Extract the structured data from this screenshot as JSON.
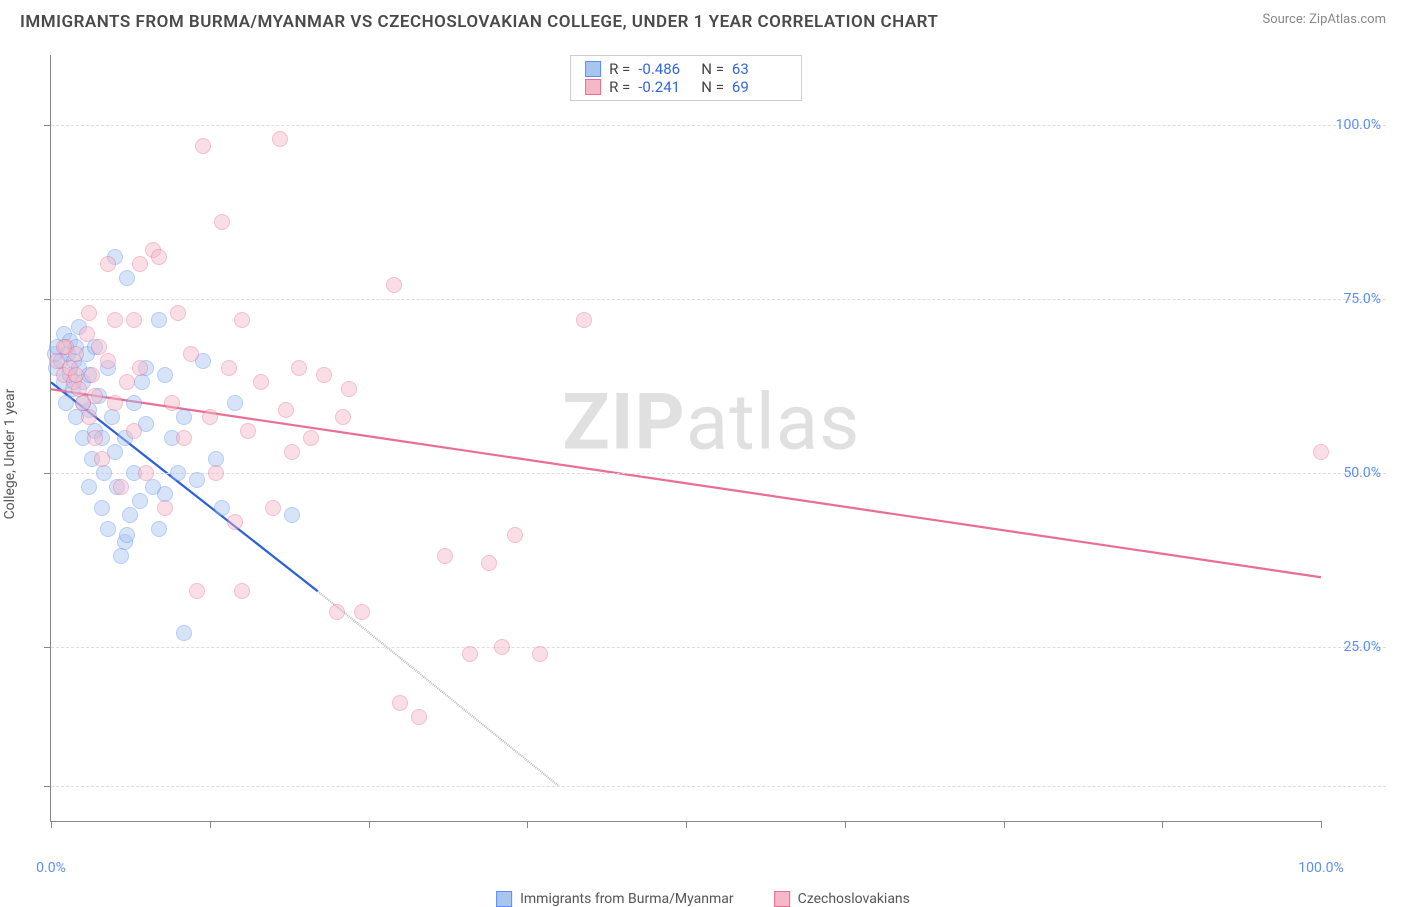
{
  "title": "IMMIGRANTS FROM BURMA/MYANMAR VS CZECHOSLOVAKIAN COLLEGE, UNDER 1 YEAR CORRELATION CHART",
  "source": "Source: ZipAtlas.com",
  "y_axis_title": "College, Under 1 year",
  "watermark_bold": "ZIP",
  "watermark_rest": "atlas",
  "chart": {
    "type": "scatter-correlation",
    "background_color": "#ffffff",
    "grid_color": "#dddddd",
    "axis_color": "#888888",
    "label_color": "#5b8ff9",
    "xlim": [
      0,
      100
    ],
    "ylim": [
      0,
      110
    ],
    "x_ticks": [
      0,
      12.5,
      25,
      37.5,
      50,
      62.5,
      75,
      87.5,
      100
    ],
    "x_tick_labels": {
      "0": "0.0%",
      "100": "100.0%"
    },
    "y_gridlines": [
      5,
      25,
      50,
      75,
      100
    ],
    "y_tick_labels": {
      "25": "25.0%",
      "50": "50.0%",
      "75": "75.0%",
      "100": "100.0%"
    },
    "marker_radius": 8,
    "marker_opacity": 0.45,
    "line_width": 2.2,
    "series": [
      {
        "name": "Immigrants from Burma/Myanmar",
        "color_fill": "#a8c5f0",
        "color_stroke": "#5b8ff9",
        "line_color": "#2b5fd9",
        "R": "-0.486",
        "N": "63",
        "trend": {
          "x0": 0,
          "y0": 63,
          "x1": 21,
          "y1": 33,
          "dash_x1": 40,
          "dash_y1": 5
        },
        "points": [
          [
            0.3,
            67
          ],
          [
            0.4,
            65
          ],
          [
            0.5,
            68
          ],
          [
            0.8,
            66
          ],
          [
            1.0,
            63
          ],
          [
            1.0,
            70
          ],
          [
            1.2,
            60
          ],
          [
            1.3,
            67
          ],
          [
            1.5,
            64
          ],
          [
            1.5,
            69
          ],
          [
            1.7,
            62
          ],
          [
            1.8,
            66
          ],
          [
            2.0,
            58
          ],
          [
            2.0,
            68
          ],
          [
            2.2,
            65
          ],
          [
            2.2,
            71
          ],
          [
            2.5,
            55
          ],
          [
            2.5,
            63
          ],
          [
            2.8,
            67
          ],
          [
            3.0,
            59
          ],
          [
            3.0,
            64
          ],
          [
            3.2,
            52
          ],
          [
            3.5,
            68
          ],
          [
            3.5,
            56
          ],
          [
            3.8,
            61
          ],
          [
            4.0,
            45
          ],
          [
            4.2,
            50
          ],
          [
            4.5,
            65
          ],
          [
            4.5,
            42
          ],
          [
            4.8,
            58
          ],
          [
            5.0,
            53
          ],
          [
            5.0,
            81
          ],
          [
            5.2,
            48
          ],
          [
            5.5,
            38
          ],
          [
            5.8,
            55
          ],
          [
            6.0,
            78
          ],
          [
            6.2,
            44
          ],
          [
            6.5,
            50
          ],
          [
            6.5,
            60
          ],
          [
            5.8,
            40
          ],
          [
            7.0,
            46
          ],
          [
            7.2,
            63
          ],
          [
            7.5,
            57
          ],
          [
            8.0,
            48
          ],
          [
            8.5,
            72
          ],
          [
            9.0,
            64
          ],
          [
            9.5,
            55
          ],
          [
            10.0,
            50
          ],
          [
            10.5,
            58
          ],
          [
            11.5,
            49
          ],
          [
            12.0,
            66
          ],
          [
            13.0,
            52
          ],
          [
            13.5,
            45
          ],
          [
            14.5,
            60
          ],
          [
            8.5,
            42
          ],
          [
            6.0,
            41
          ],
          [
            4.0,
            55
          ],
          [
            3.0,
            48
          ],
          [
            7.5,
            65
          ],
          [
            9.0,
            47
          ],
          [
            10.5,
            27
          ],
          [
            19.0,
            44
          ],
          [
            2.5,
            60
          ]
        ]
      },
      {
        "name": "Czechoslovakians",
        "color_fill": "#f5b8c8",
        "color_stroke": "#e86f91",
        "line_color": "#e86f91",
        "R": "-0.241",
        "N": "69",
        "trend": {
          "x0": 0,
          "y0": 62,
          "x1": 100,
          "y1": 35
        },
        "points": [
          [
            0.5,
            66
          ],
          [
            1.0,
            64
          ],
          [
            1.2,
            68
          ],
          [
            1.5,
            65
          ],
          [
            1.8,
            63
          ],
          [
            2.0,
            67
          ],
          [
            2.2,
            62
          ],
          [
            2.5,
            60
          ],
          [
            2.8,
            70
          ],
          [
            3.0,
            58
          ],
          [
            3.2,
            64
          ],
          [
            3.5,
            55
          ],
          [
            3.8,
            68
          ],
          [
            4.0,
            52
          ],
          [
            4.5,
            66
          ],
          [
            5.0,
            60
          ],
          [
            5.5,
            48
          ],
          [
            6.0,
            63
          ],
          [
            6.5,
            56
          ],
          [
            7.0,
            65
          ],
          [
            7.5,
            50
          ],
          [
            8.0,
            82
          ],
          [
            8.5,
            81
          ],
          [
            9.0,
            45
          ],
          [
            9.5,
            60
          ],
          [
            10.0,
            73
          ],
          [
            10.5,
            55
          ],
          [
            11.0,
            67
          ],
          [
            11.5,
            33
          ],
          [
            12.0,
            97
          ],
          [
            12.5,
            58
          ],
          [
            13.0,
            50
          ],
          [
            13.5,
            86
          ],
          [
            14.0,
            65
          ],
          [
            14.5,
            43
          ],
          [
            15.0,
            72
          ],
          [
            15.5,
            56
          ],
          [
            16.5,
            63
          ],
          [
            17.5,
            45
          ],
          [
            18.0,
            98
          ],
          [
            18.5,
            59
          ],
          [
            19.5,
            65
          ],
          [
            20.5,
            55
          ],
          [
            21.5,
            64
          ],
          [
            22.5,
            30
          ],
          [
            23.0,
            58
          ],
          [
            23.5,
            62
          ],
          [
            24.5,
            30
          ],
          [
            27.0,
            77
          ],
          [
            27.5,
            17
          ],
          [
            29.0,
            15
          ],
          [
            31.0,
            38
          ],
          [
            33.0,
            24
          ],
          [
            34.5,
            37
          ],
          [
            35.5,
            25
          ],
          [
            36.5,
            41
          ],
          [
            38.5,
            24
          ],
          [
            42.0,
            72
          ],
          [
            15.0,
            33
          ],
          [
            5.0,
            72
          ],
          [
            7.0,
            80
          ],
          [
            3.0,
            73
          ],
          [
            4.5,
            80
          ],
          [
            6.5,
            72
          ],
          [
            19.0,
            53
          ],
          [
            3.5,
            61
          ],
          [
            2.0,
            64
          ],
          [
            1.0,
            68
          ],
          [
            100.0,
            53
          ]
        ]
      }
    ]
  },
  "stats_labels": {
    "R": "R =",
    "N": "N ="
  },
  "bottom_legend": [
    {
      "label": "Immigrants from Burma/Myanmar",
      "fill": "#a8c5f0",
      "stroke": "#5b8ff9"
    },
    {
      "label": "Czechoslovakians",
      "fill": "#f5b8c8",
      "stroke": "#e86f91"
    }
  ]
}
